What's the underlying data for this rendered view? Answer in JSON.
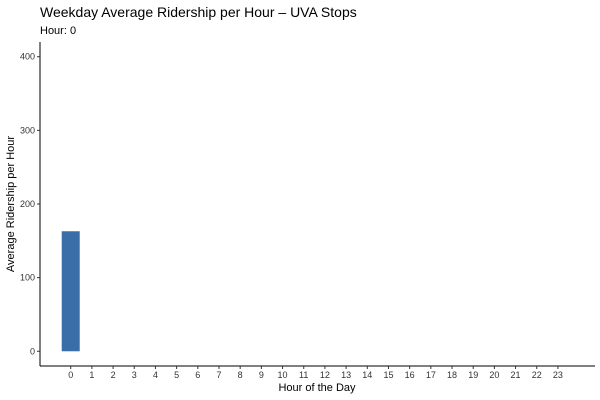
{
  "chart_data": {
    "type": "bar",
    "title": "Weekday Average Ridership per Hour – UVA Stops",
    "subtitle": "Hour: 0",
    "xlabel": "Hour of the Day",
    "ylabel": "Average Ridership per Hour",
    "categories": [
      "0",
      "1",
      "2",
      "3",
      "4",
      "5",
      "6",
      "7",
      "8",
      "9",
      "10",
      "11",
      "12",
      "13",
      "14",
      "15",
      "16",
      "17",
      "18",
      "19",
      "20",
      "21",
      "22",
      "23"
    ],
    "values": [
      163,
      0,
      0,
      0,
      0,
      0,
      0,
      0,
      0,
      0,
      0,
      0,
      0,
      0,
      0,
      0,
      0,
      0,
      0,
      0,
      0,
      0,
      0,
      0
    ],
    "ylim": [
      -20,
      420
    ],
    "yticks": [
      0,
      100,
      200,
      300,
      400
    ],
    "bar_color": "#3a6ea8",
    "grid": false,
    "legend": "none"
  }
}
